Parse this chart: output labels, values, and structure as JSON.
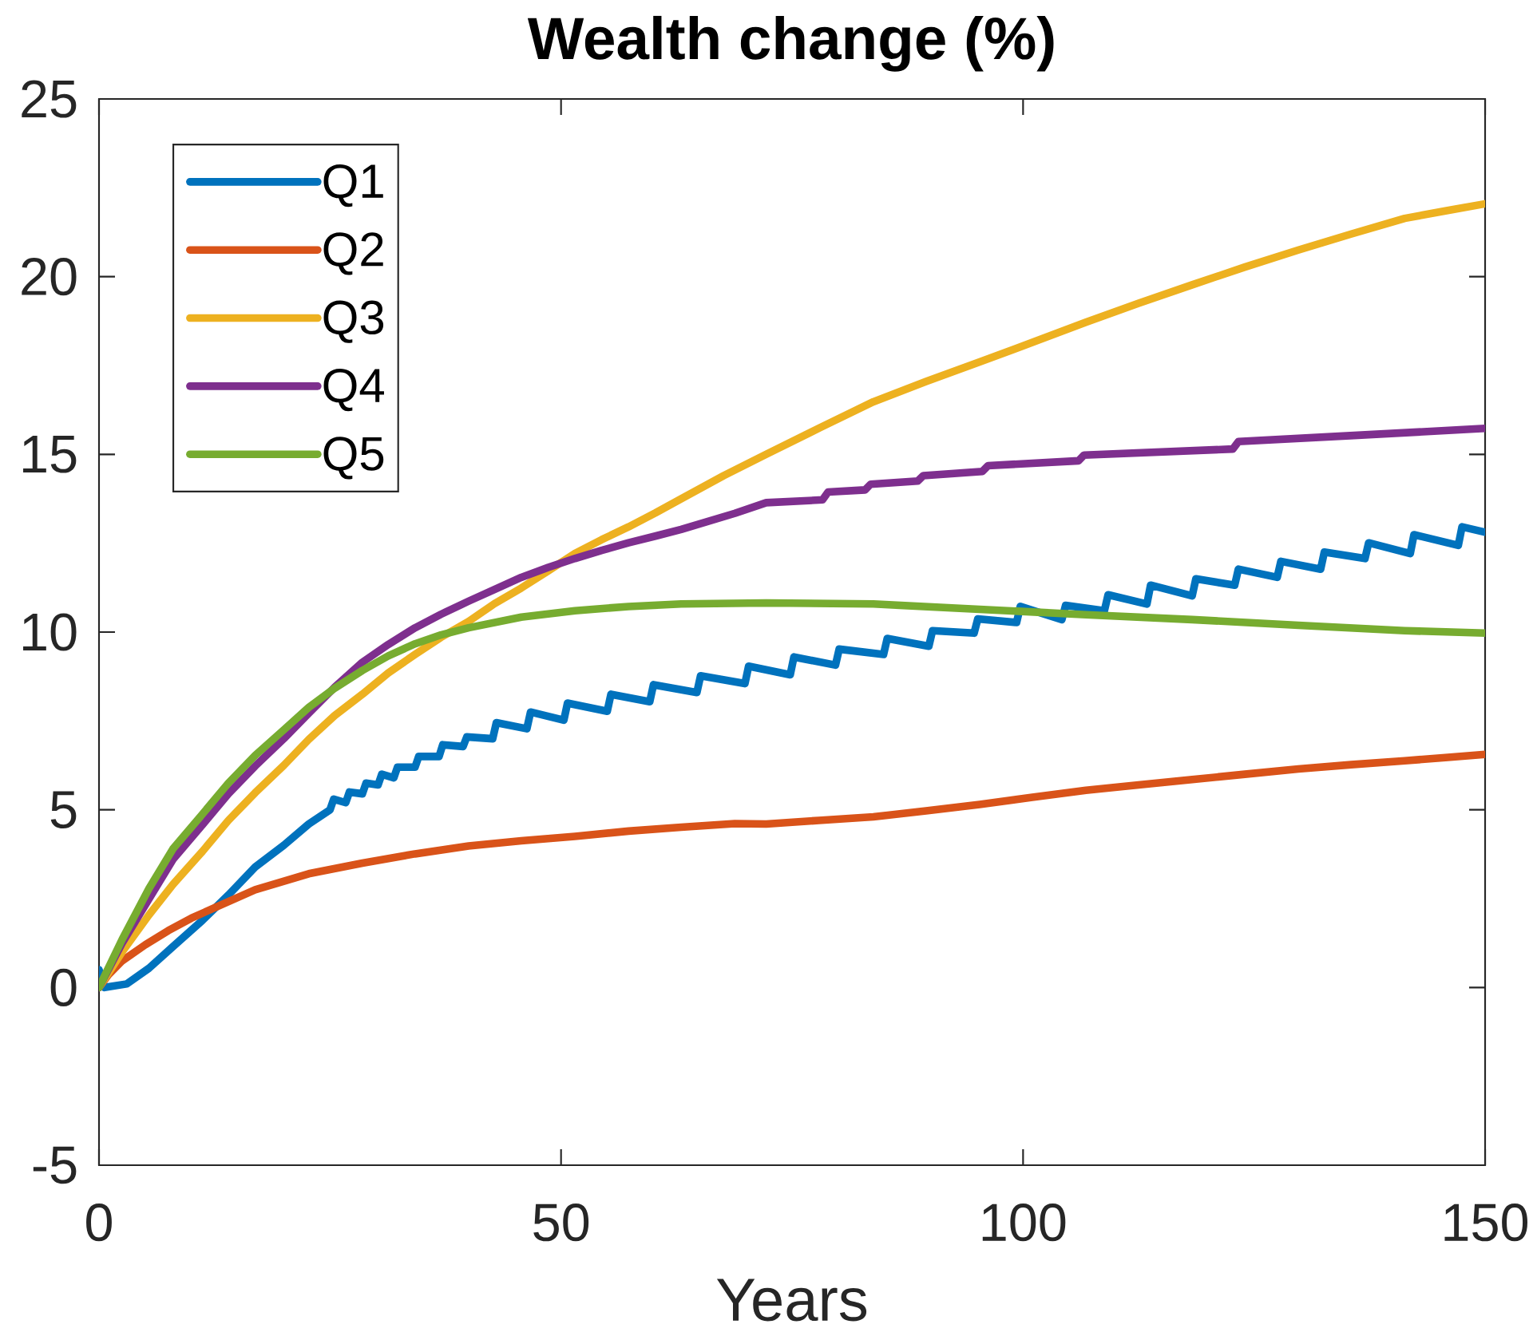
{
  "chart_data": {
    "type": "line",
    "title": "Wealth change (%)",
    "xlabel": "Years",
    "xlim": [
      0,
      150
    ],
    "xticks": [
      0,
      50,
      100,
      150
    ],
    "ylim": [
      -5,
      25
    ],
    "yticks": [
      -5,
      0,
      5,
      10,
      15,
      20,
      25
    ],
    "legend": "top left",
    "line_style": "solid",
    "marker": "none",
    "series": [
      {
        "name": "Q1",
        "color": "#0072bd",
        "x": [
          0,
          0.6,
          3,
          5.4,
          8,
          11.2,
          14,
          16.9,
          20,
          22.7,
          25,
          25.4,
          26.7,
          27.1,
          28.5,
          28.9,
          30.2,
          30.6,
          31.9,
          32.3,
          34.2,
          34.6,
          36.8,
          37.2,
          39.4,
          39.8,
          42.6,
          43,
          46.3,
          46.7,
          50.3,
          50.7,
          55,
          55.4,
          59.6,
          60,
          64.7,
          65.1,
          69.9,
          70.3,
          74.8,
          75.2,
          79.7,
          80.1,
          84.9,
          85.3,
          89.8,
          90.2,
          94.7,
          95.1,
          99.3,
          99.7,
          104.2,
          104.6,
          108.8,
          109.2,
          113.4,
          113.8,
          118.3,
          118.7,
          122.9,
          123.3,
          127.5,
          127.9,
          132.2,
          132.6,
          137,
          137.4,
          141.9,
          142.3,
          147.1,
          147.5,
          150
        ],
        "values": [
          0.5,
          0,
          0.1,
          0.54,
          1.15,
          1.89,
          2.6,
          3.39,
          4.0,
          4.6,
          5.0,
          5.3,
          5.2,
          5.5,
          5.45,
          5.75,
          5.7,
          6.0,
          5.9,
          6.2,
          6.2,
          6.5,
          6.5,
          6.83,
          6.78,
          7.05,
          7.0,
          7.45,
          7.28,
          7.75,
          7.52,
          8.0,
          7.77,
          8.25,
          8.04,
          8.52,
          8.3,
          8.77,
          8.55,
          9.04,
          8.8,
          9.3,
          9.07,
          9.52,
          9.37,
          9.82,
          9.6,
          10.04,
          9.97,
          10.37,
          10.27,
          10.72,
          10.35,
          10.75,
          10.6,
          11.05,
          10.79,
          11.32,
          11.02,
          11.5,
          11.32,
          11.77,
          11.54,
          11.99,
          11.77,
          12.25,
          12.07,
          12.51,
          12.21,
          12.74,
          12.44,
          12.96,
          12.81
        ]
      },
      {
        "name": "Q2",
        "color": "#d95319",
        "x": [
          0,
          1,
          2.5,
          5,
          7.5,
          10,
          13,
          16.9,
          22.7,
          28.5,
          34.2,
          40,
          45.7,
          51.5,
          57.3,
          63,
          68.8,
          72.2,
          77.9,
          83.8,
          89.5,
          95.3,
          101,
          106.8,
          112.5,
          118.3,
          124,
          129.8,
          135.5,
          141.3,
          145.7,
          150
        ],
        "values": [
          0,
          0.35,
          0.75,
          1.2,
          1.6,
          1.95,
          2.3,
          2.75,
          3.2,
          3.5,
          3.76,
          3.98,
          4.13,
          4.25,
          4.4,
          4.51,
          4.61,
          4.6,
          4.7,
          4.8,
          4.97,
          5.15,
          5.35,
          5.55,
          5.7,
          5.85,
          6.0,
          6.15,
          6.27,
          6.38,
          6.47,
          6.56
        ]
      },
      {
        "name": "Q3",
        "color": "#edb120",
        "x": [
          0,
          2.5,
          5.4,
          8,
          11.2,
          14,
          16.9,
          20,
          22.7,
          25.5,
          28.5,
          31.3,
          34.2,
          37,
          40,
          42.8,
          45.7,
          48.6,
          51.5,
          54.4,
          57.3,
          60.2,
          63,
          67.6,
          72.2,
          78,
          83.8,
          89.5,
          95.3,
          101,
          106.8,
          112.5,
          118.3,
          124,
          129.8,
          135.5,
          141.3,
          145.7,
          150
        ],
        "values": [
          0,
          1.0,
          2.04,
          2.9,
          3.83,
          4.7,
          5.48,
          6.25,
          6.98,
          7.65,
          8.25,
          8.85,
          9.37,
          9.85,
          10.3,
          10.8,
          11.24,
          11.72,
          12.21,
          12.6,
          12.96,
          13.35,
          13.75,
          14.4,
          15.0,
          15.75,
          16.48,
          17.05,
          17.6,
          18.15,
          18.72,
          19.25,
          19.77,
          20.27,
          20.75,
          21.2,
          21.64,
          21.85,
          22.05
        ]
      },
      {
        "name": "Q4",
        "color": "#7e2f8e",
        "x": [
          0,
          2.5,
          5.4,
          8,
          11.2,
          14,
          16.9,
          20,
          22.7,
          25.5,
          28.5,
          31.3,
          34.2,
          37,
          40,
          42.8,
          45.7,
          48.6,
          51.5,
          54.4,
          57.3,
          60.2,
          63,
          68.8,
          72.2,
          78.3,
          78.9,
          82.9,
          83.5,
          88.6,
          89.2,
          95.6,
          96.2,
          106,
          106.6,
          122.7,
          123.3,
          135,
          150
        ],
        "values": [
          0,
          1.25,
          2.49,
          3.6,
          4.58,
          5.45,
          6.23,
          7.0,
          7.72,
          8.45,
          9.15,
          9.65,
          10.12,
          10.5,
          10.87,
          11.2,
          11.54,
          11.82,
          12.07,
          12.3,
          12.51,
          12.7,
          12.89,
          13.34,
          13.64,
          13.72,
          13.94,
          14.0,
          14.16,
          14.25,
          14.4,
          14.52,
          14.68,
          14.82,
          14.98,
          15.15,
          15.36,
          15.52,
          15.73
        ]
      },
      {
        "name": "Q5",
        "color": "#77ac30",
        "x": [
          0,
          2.5,
          5.4,
          8,
          11.2,
          14,
          16.9,
          20,
          22.7,
          25.5,
          28.5,
          31.3,
          34.2,
          37,
          40,
          45.7,
          51.5,
          57.3,
          63,
          72.2,
          83.8,
          95.3,
          106.8,
          118.3,
          129.8,
          141.3,
          150
        ],
        "values": [
          0,
          1.35,
          2.78,
          3.9,
          4.88,
          5.75,
          6.53,
          7.25,
          7.88,
          8.42,
          8.92,
          9.33,
          9.67,
          9.92,
          10.12,
          10.42,
          10.6,
          10.72,
          10.79,
          10.82,
          10.79,
          10.64,
          10.49,
          10.35,
          10.19,
          10.04,
          9.97
        ]
      }
    ]
  }
}
